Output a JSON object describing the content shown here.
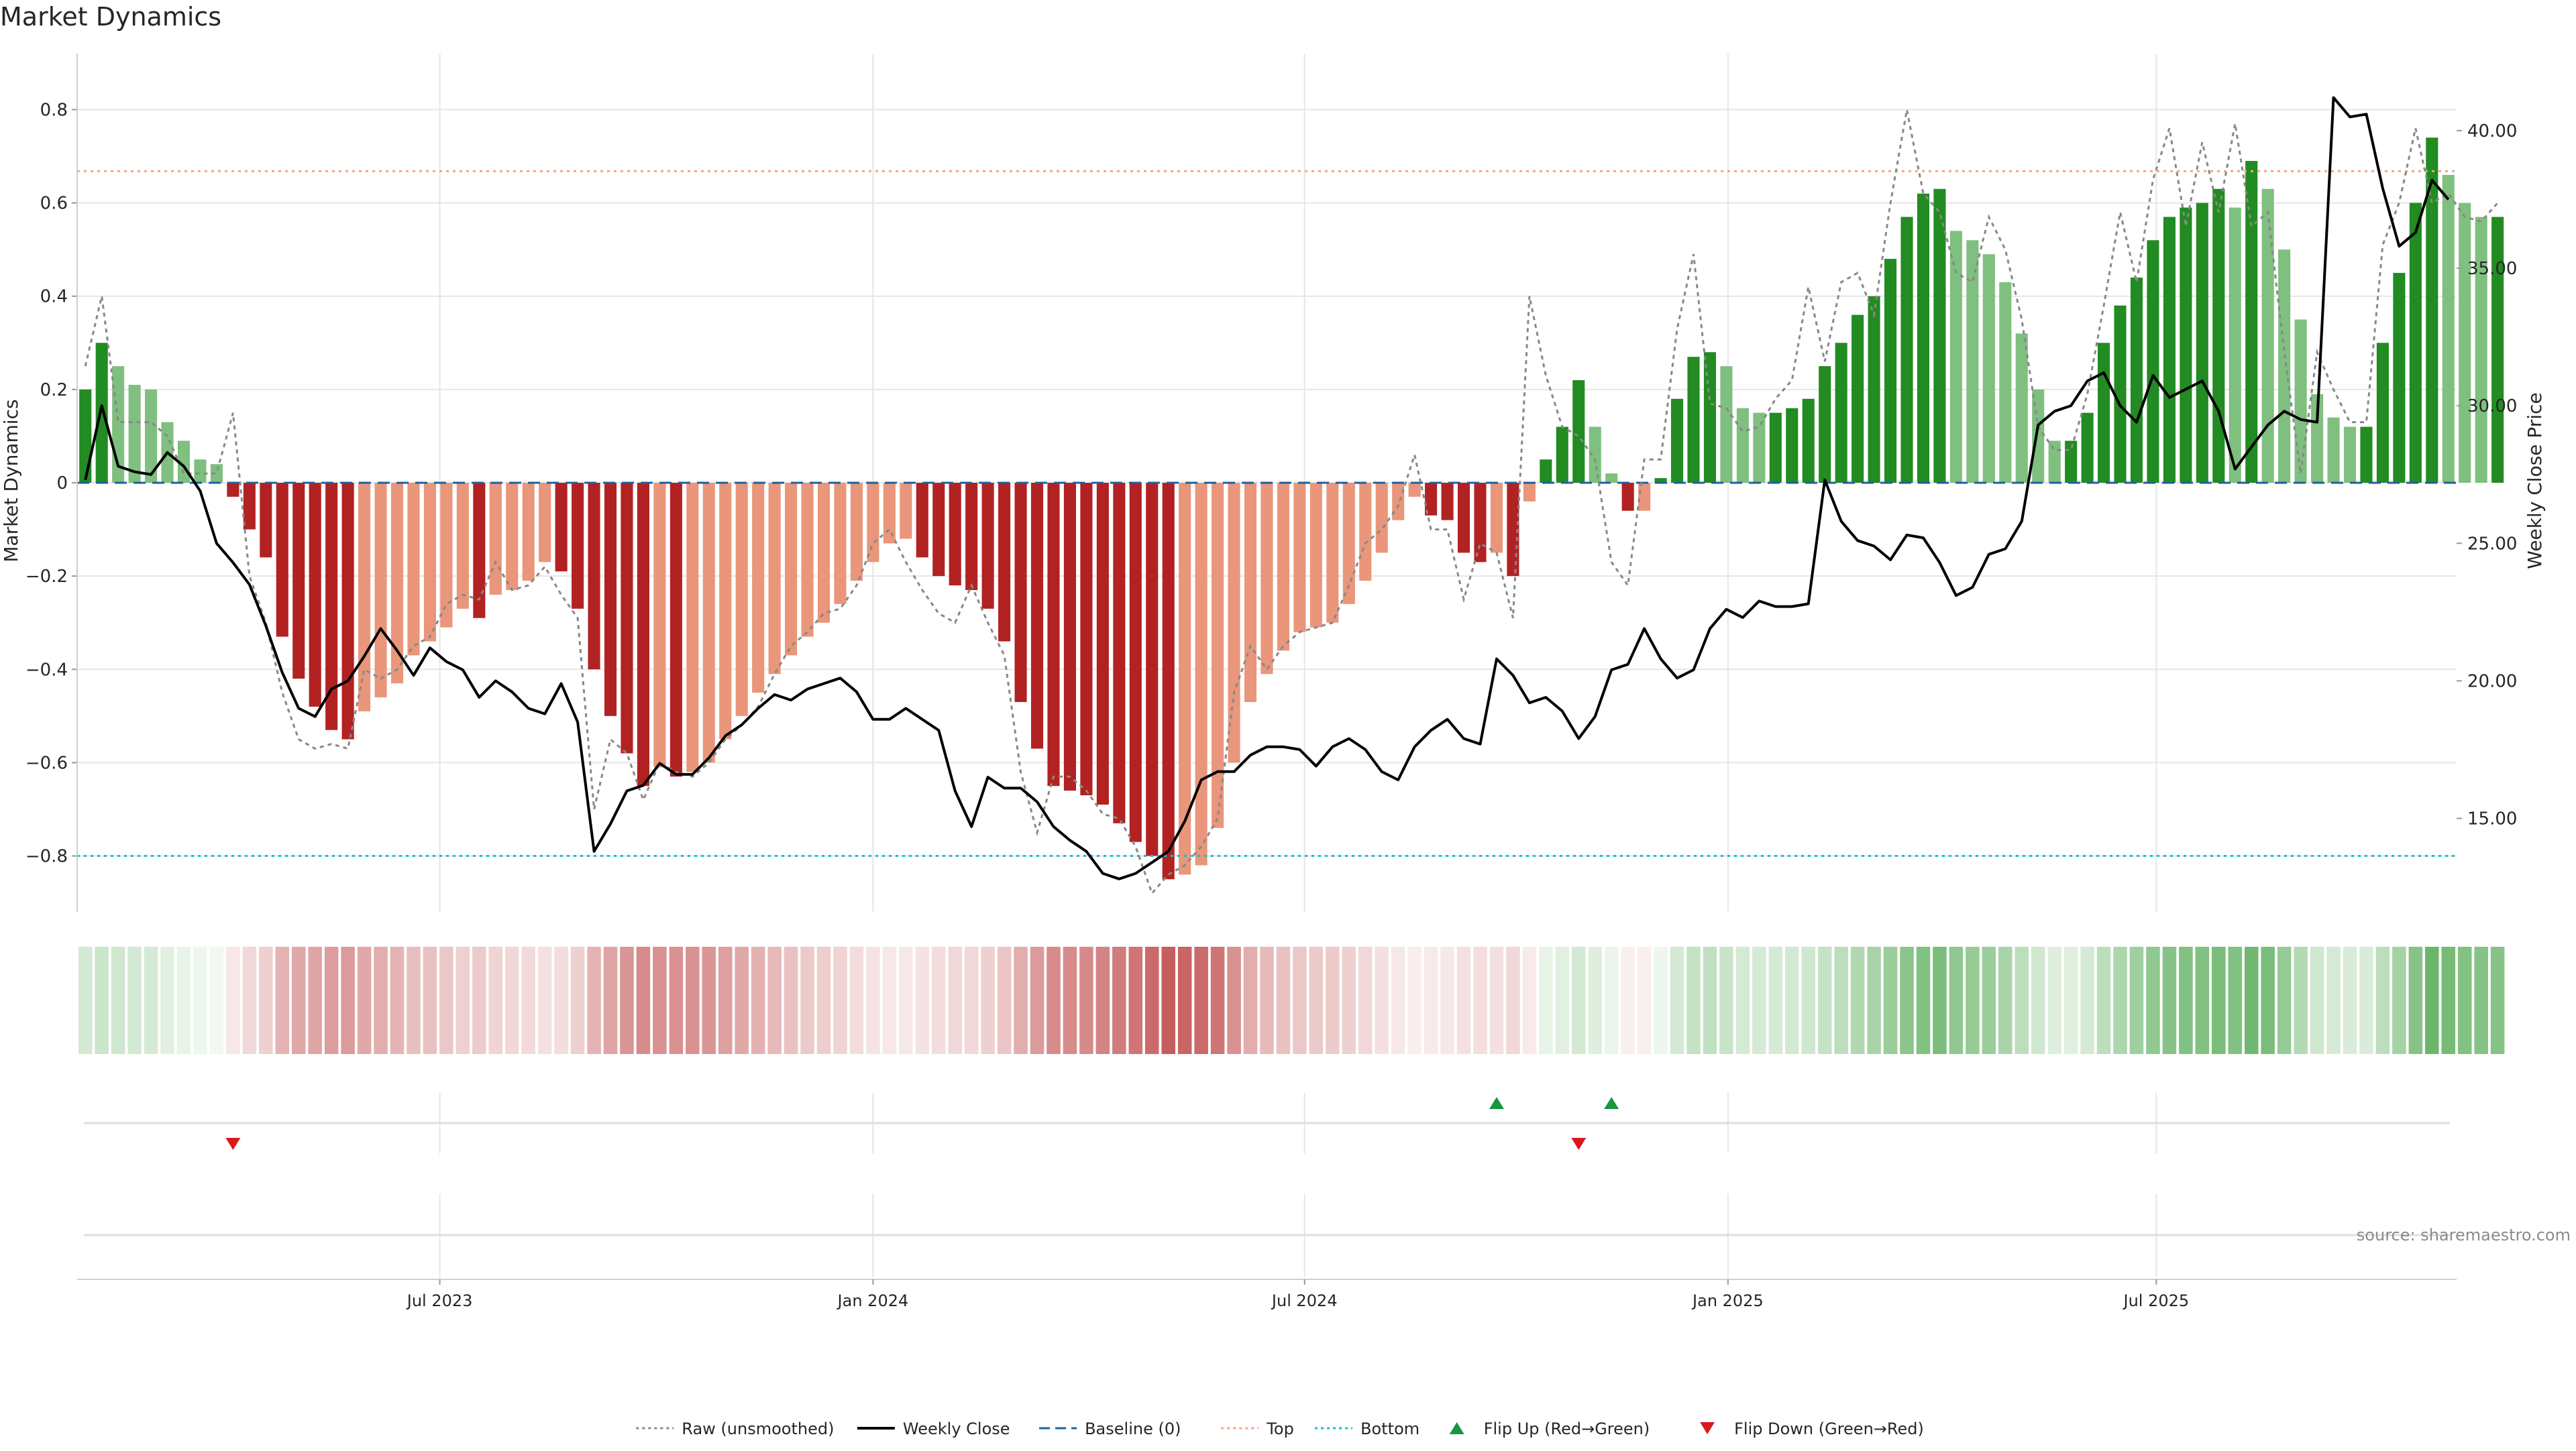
{
  "chart_data": {
    "type": "bar",
    "title": "Market Dynamics",
    "ylabel": "Market Dynamics",
    "ylabel_right": "Weekly Close Price",
    "source": "source: sharemaestro.com",
    "ylim": [
      -0.92,
      0.92
    ],
    "ylim_right": [
      11.6,
      42.8
    ],
    "y_ticks": [
      -0.8,
      -0.6,
      -0.4,
      -0.2,
      0,
      0.2,
      0.4,
      0.6,
      0.8
    ],
    "y_tick_labels": [
      "−0.8",
      "−0.6",
      "−0.4",
      "−0.2",
      "0",
      "0.2",
      "0.4",
      "0.6",
      "0.8"
    ],
    "y2_ticks": [
      15,
      20,
      25,
      30,
      35,
      40
    ],
    "y2_tick_labels": [
      "15.00",
      "20.00",
      "25.00",
      "30.00",
      "35.00",
      "40.00"
    ],
    "x_ticks": [
      21.6,
      48.0,
      74.3,
      100.1,
      126.2
    ],
    "x_tick_labels": [
      "Jul 2023",
      "Jan 2024",
      "Jul 2024",
      "Jan 2025",
      "Jul 2025"
    ],
    "grid": true,
    "legend_position": "bottom",
    "top_threshold": 0.668,
    "bottom_threshold": -0.8,
    "x": [
      0,
      1,
      2,
      3,
      4,
      5,
      6,
      7,
      8,
      9,
      10,
      11,
      12,
      13,
      14,
      15,
      16,
      17,
      18,
      19,
      20,
      21,
      22,
      23,
      24,
      25,
      26,
      27,
      28,
      29,
      30,
      31,
      32,
      33,
      34,
      35,
      36,
      37,
      38,
      39,
      40,
      41,
      42,
      43,
      44,
      45,
      46,
      47,
      48,
      49,
      50,
      51,
      52,
      53,
      54,
      55,
      56,
      57,
      58,
      59,
      60,
      61,
      62,
      63,
      64,
      65,
      66,
      67,
      68,
      69,
      70,
      71,
      72,
      73,
      74,
      75,
      76,
      77,
      78,
      79,
      80,
      81,
      82,
      83,
      84,
      85,
      86,
      87,
      88,
      89,
      90,
      91,
      92,
      93,
      94,
      95,
      96,
      97,
      98,
      99,
      100,
      101,
      102,
      103,
      104,
      105,
      106,
      107,
      108,
      109,
      110,
      111,
      112,
      113,
      114,
      115,
      116,
      117,
      118,
      119,
      120,
      121,
      122,
      123,
      124,
      125,
      126,
      127,
      128,
      129,
      130,
      131,
      132,
      133,
      134,
      135,
      136,
      137,
      138,
      139,
      140,
      141,
      142,
      143,
      144
    ],
    "smoothed": [
      0.2,
      0.3,
      0.25,
      0.21,
      0.2,
      0.13,
      0.09,
      0.05,
      0.04,
      -0.03,
      -0.1,
      -0.16,
      -0.33,
      -0.42,
      -0.48,
      -0.53,
      -0.55,
      -0.49,
      -0.46,
      -0.43,
      -0.37,
      -0.34,
      -0.31,
      -0.27,
      -0.29,
      -0.24,
      -0.23,
      -0.21,
      -0.17,
      -0.19,
      -0.27,
      -0.4,
      -0.5,
      -0.58,
      -0.65,
      -0.61,
      -0.63,
      -0.62,
      -0.6,
      -0.55,
      -0.5,
      -0.45,
      -0.41,
      -0.37,
      -0.33,
      -0.3,
      -0.26,
      -0.21,
      -0.17,
      -0.13,
      -0.12,
      -0.16,
      -0.2,
      -0.22,
      -0.23,
      -0.27,
      -0.34,
      -0.47,
      -0.57,
      -0.65,
      -0.66,
      -0.67,
      -0.69,
      -0.73,
      -0.77,
      -0.8,
      -0.85,
      -0.84,
      -0.82,
      -0.74,
      -0.6,
      -0.47,
      -0.41,
      -0.36,
      -0.32,
      -0.31,
      -0.3,
      -0.26,
      -0.21,
      -0.15,
      -0.08,
      -0.03,
      -0.07,
      -0.08,
      -0.15,
      -0.17,
      -0.15,
      -0.2,
      -0.04,
      0.05,
      0.12,
      0.22,
      0.12,
      0.02,
      -0.06,
      -0.06,
      0.01,
      0.18,
      0.27,
      0.28,
      0.25,
      0.16,
      0.15,
      0.15,
      0.16,
      0.18,
      0.25,
      0.3,
      0.36,
      0.4,
      0.48,
      0.57,
      0.62,
      0.63,
      0.54,
      0.52,
      0.49,
      0.43,
      0.32,
      0.2,
      0.09,
      0.09,
      0.15,
      0.3,
      0.38,
      0.44,
      0.52,
      0.57,
      0.59,
      0.6,
      0.63,
      0.59,
      0.69,
      0.63,
      0.5,
      0.35,
      0.19,
      0.14,
      0.12,
      0.12,
      0.3,
      0.45,
      0.6,
      0.74,
      0.66,
      0.6,
      0.57,
      0.57
    ],
    "raw": [
      0.25,
      0.4,
      0.13,
      0.13,
      0.13,
      0.1,
      0.02,
      0.02,
      0.02,
      0.15,
      -0.2,
      -0.3,
      -0.45,
      -0.55,
      -0.57,
      -0.56,
      -0.57,
      -0.4,
      -0.42,
      -0.4,
      -0.35,
      -0.33,
      -0.26,
      -0.24,
      -0.25,
      -0.17,
      -0.23,
      -0.22,
      -0.18,
      -0.24,
      -0.29,
      -0.7,
      -0.55,
      -0.58,
      -0.68,
      -0.6,
      -0.62,
      -0.63,
      -0.6,
      -0.55,
      -0.52,
      -0.48,
      -0.41,
      -0.35,
      -0.32,
      -0.28,
      -0.27,
      -0.22,
      -0.13,
      -0.1,
      -0.17,
      -0.23,
      -0.28,
      -0.3,
      -0.22,
      -0.3,
      -0.37,
      -0.62,
      -0.75,
      -0.63,
      -0.63,
      -0.66,
      -0.71,
      -0.72,
      -0.78,
      -0.88,
      -0.84,
      -0.82,
      -0.78,
      -0.72,
      -0.45,
      -0.35,
      -0.4,
      -0.35,
      -0.32,
      -0.31,
      -0.3,
      -0.22,
      -0.13,
      -0.1,
      -0.05,
      0.06,
      -0.1,
      -0.1,
      -0.25,
      -0.13,
      -0.15,
      -0.29,
      0.4,
      0.23,
      0.12,
      0.1,
      0.05,
      -0.17,
      -0.22,
      0.05,
      0.05,
      0.33,
      0.49,
      0.17,
      0.16,
      0.11,
      0.12,
      0.18,
      0.22,
      0.42,
      0.26,
      0.43,
      0.45,
      0.36,
      0.6,
      0.8,
      0.62,
      0.58,
      0.45,
      0.43,
      0.57,
      0.5,
      0.35,
      0.12,
      0.07,
      0.07,
      0.19,
      0.38,
      0.58,
      0.43,
      0.65,
      0.76,
      0.55,
      0.73,
      0.58,
      0.77,
      0.55,
      0.58,
      0.28,
      0.02,
      0.28,
      0.2,
      0.13,
      0.13,
      0.51,
      0.6,
      0.76,
      0.6,
      0.62,
      0.57,
      0.56,
      0.6
    ],
    "close": [
      27.3,
      30.0,
      27.8,
      27.6,
      27.5,
      28.3,
      27.8,
      26.9,
      25.0,
      24.3,
      23.5,
      22.0,
      20.3,
      19.0,
      18.7,
      19.7,
      20.0,
      20.9,
      21.9,
      21.1,
      20.2,
      21.2,
      20.7,
      20.4,
      19.4,
      20.0,
      19.6,
      19.0,
      18.8,
      19.9,
      18.5,
      13.8,
      14.8,
      16.0,
      16.2,
      17.0,
      16.6,
      16.6,
      17.2,
      18.0,
      18.4,
      19.0,
      19.5,
      19.3,
      19.7,
      19.9,
      20.1,
      19.6,
      18.6,
      18.6,
      19.0,
      18.6,
      18.2,
      16.0,
      14.7,
      16.5,
      16.1,
      16.1,
      15.6,
      14.7,
      14.2,
      13.8,
      13.0,
      12.8,
      13.0,
      13.4,
      13.8,
      14.9,
      16.4,
      16.7,
      16.7,
      17.3,
      17.6,
      17.6,
      17.5,
      16.9,
      17.6,
      17.9,
      17.5,
      16.7,
      16.4,
      17.6,
      18.2,
      18.6,
      17.9,
      17.7,
      20.8,
      20.2,
      19.2,
      19.4,
      18.9,
      17.9,
      18.7,
      20.4,
      20.6,
      21.9,
      20.8,
      20.1,
      20.4,
      21.9,
      22.6,
      22.3,
      22.9,
      22.7,
      22.7,
      22.8,
      27.3,
      25.8,
      25.1,
      24.9,
      24.4,
      25.3,
      25.2,
      24.3,
      23.1,
      23.4,
      24.6,
      24.8,
      25.8,
      29.3,
      29.8,
      30.0,
      30.9,
      31.2,
      30.0,
      29.4,
      31.1,
      30.3,
      30.6,
      30.9,
      29.8,
      27.7,
      28.5,
      29.3,
      29.8,
      29.5,
      29.4,
      41.2,
      40.5,
      40.6,
      37.9,
      35.8,
      36.3,
      38.2,
      37.5
    ],
    "sentiment_strip": [
      0.4,
      0.45,
      0.42,
      0.4,
      0.38,
      0.3,
      0.25,
      0.2,
      0.18,
      -0.25,
      -0.35,
      -0.4,
      -0.55,
      -0.6,
      -0.62,
      -0.65,
      -0.66,
      -0.6,
      -0.58,
      -0.55,
      -0.5,
      -0.48,
      -0.45,
      -0.4,
      -0.43,
      -0.38,
      -0.36,
      -0.34,
      -0.3,
      -0.32,
      -0.4,
      -0.55,
      -0.62,
      -0.68,
      -0.72,
      -0.7,
      -0.7,
      -0.7,
      -0.68,
      -0.64,
      -0.6,
      -0.56,
      -0.52,
      -0.48,
      -0.44,
      -0.42,
      -0.38,
      -0.33,
      -0.28,
      -0.25,
      -0.24,
      -0.28,
      -0.32,
      -0.35,
      -0.36,
      -0.4,
      -0.46,
      -0.58,
      -0.66,
      -0.72,
      -0.72,
      -0.73,
      -0.75,
      -0.78,
      -0.8,
      -0.84,
      -0.88,
      -0.86,
      -0.84,
      -0.8,
      -0.7,
      -0.58,
      -0.52,
      -0.48,
      -0.45,
      -0.44,
      -0.43,
      -0.4,
      -0.36,
      -0.3,
      -0.24,
      -0.2,
      -0.22,
      -0.24,
      -0.3,
      -0.32,
      -0.3,
      -0.35,
      -0.22,
      0.25,
      0.3,
      0.4,
      0.32,
      0.22,
      -0.18,
      -0.18,
      0.2,
      0.4,
      0.48,
      0.5,
      0.46,
      0.38,
      0.38,
      0.38,
      0.4,
      0.42,
      0.48,
      0.52,
      0.58,
      0.62,
      0.68,
      0.74,
      0.78,
      0.8,
      0.72,
      0.7,
      0.68,
      0.62,
      0.52,
      0.42,
      0.32,
      0.32,
      0.38,
      0.52,
      0.6,
      0.66,
      0.72,
      0.76,
      0.78,
      0.78,
      0.8,
      0.78,
      0.84,
      0.8,
      0.7,
      0.56,
      0.42,
      0.38,
      0.36,
      0.36,
      0.52,
      0.64,
      0.76,
      0.86,
      0.82,
      0.78,
      0.76,
      0.76
    ],
    "flip_up": [
      86,
      93
    ],
    "flip_down": [
      9,
      91
    ],
    "legend": [
      {
        "label": "Raw (unsmoothed)",
        "style": "dotted-line",
        "color": "#888888"
      },
      {
        "label": "Weekly Close",
        "style": "solid-line",
        "color": "#000000"
      },
      {
        "label": "Baseline (0)",
        "style": "dashed-line",
        "color": "#1f5f9e"
      },
      {
        "label": "Top",
        "style": "dotted-line",
        "color": "#f4a582"
      },
      {
        "label": "Bottom",
        "style": "dotted-line",
        "color": "#17becf"
      },
      {
        "label": "Flip Up (Red→Green)",
        "style": "triangle-up",
        "color": "#1a9641"
      },
      {
        "label": "Flip Down (Green→Red)",
        "style": "triangle-down",
        "color": "#d7191c"
      }
    ],
    "colors": {
      "pos_strong": "#228b22",
      "pos_weak": "#7fbf7f",
      "neg_strong": "#b22222",
      "neg_weak": "#e9967a",
      "raw_line": "#888888",
      "close_line": "#000000",
      "baseline": "#1f5f9e",
      "top_line": "#f4a582",
      "bottom_line": "#17becf",
      "flip_up": "#1a9641",
      "flip_down": "#d7191c",
      "grid": "#e6e6e6"
    }
  }
}
